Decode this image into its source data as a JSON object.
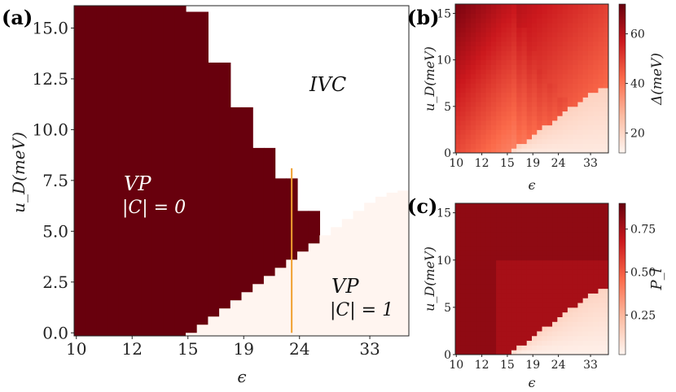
{
  "colors": {
    "dark": "#68000d",
    "light": "#fff5f0",
    "line": "#f0a030",
    "frame": "#222222"
  },
  "chart_data": [
    {
      "id": "a",
      "label": "(a)",
      "type": "heatmap",
      "xlabel": "ϵ",
      "ylabel": "u_D(meV)",
      "x_ticks": [
        "10",
        "12",
        "15",
        "19",
        "24",
        "33"
      ],
      "ylim": [
        -0.15,
        16.1
      ],
      "y_ticks": [
        "0.0",
        "2.5",
        "5.0",
        "7.5",
        "10.0",
        "12.5",
        "15.0"
      ],
      "y_tick_values": [
        0,
        2.5,
        5,
        7.5,
        10,
        12.5,
        15
      ],
      "n_columns": 30,
      "vp0_upper": [
        16.1,
        16.1,
        16.1,
        16.1,
        16.1,
        16.1,
        16.1,
        16.1,
        16.1,
        16.1,
        15.8,
        15.8,
        13.3,
        13.3,
        11.1,
        11.1,
        9.1,
        9.1,
        7.6,
        7.6,
        6.0,
        6.0,
        4.7,
        4.7,
        3.9,
        3.9,
        3.4,
        3.1,
        3.1,
        3.1
      ],
      "vp0_lower": [
        -0.15,
        -0.15,
        -0.15,
        -0.15,
        -0.15,
        -0.15,
        -0.15,
        -0.15,
        -0.15,
        -0.15,
        -0.15,
        -0.15,
        -0.15,
        -0.15,
        -0.15,
        -0.15,
        -0.15,
        -0.15,
        -0.15,
        -0.15,
        -0.15,
        0.0,
        0.4,
        0.8,
        1.2,
        1.6,
        2.0,
        2.4,
        2.8,
        2.8
      ],
      "vp1_upper": [
        0.0,
        0.4,
        0.8,
        1.2,
        1.6,
        2.0,
        2.4,
        2.8,
        3.2,
        3.6,
        4.0,
        4.4,
        4.8,
        5.2,
        5.6,
        6.0,
        6.4,
        6.7,
        6.9,
        7.0
      ],
      "phase_labels": [
        {
          "name": "IVC",
          "text": "IVC"
        },
        {
          "name": "VP",
          "text": "VP",
          "subtext": "|C| = 0"
        },
        {
          "name": "VP",
          "text": "VP",
          "subtext": "|C| = 1"
        }
      ],
      "vertical_line": {
        "x_index": 19.5,
        "y_range": [
          0,
          8.1
        ]
      }
    },
    {
      "id": "b",
      "label": "(b)",
      "type": "heatmap",
      "xlabel": "ϵ",
      "ylabel": "u_D(meV)",
      "x_ticks": [
        "10",
        "12",
        "15",
        "19",
        "24",
        "33"
      ],
      "y_ticks": [
        "0",
        "5",
        "10",
        "15"
      ],
      "y_tick_values": [
        0,
        5,
        10,
        15
      ],
      "ylim": [
        0,
        16
      ],
      "colorbar": {
        "label": "Δ(meV)",
        "ticks": [
          "20",
          "40",
          "60"
        ],
        "tick_values": [
          20,
          40,
          60
        ],
        "range": [
          12,
          72
        ]
      }
    },
    {
      "id": "c",
      "label": "(c)",
      "type": "heatmap",
      "xlabel": "ϵ",
      "ylabel": "u_D(meV)",
      "x_ticks": [
        "10",
        "12",
        "15",
        "19",
        "24",
        "33"
      ],
      "y_ticks": [
        "0",
        "5",
        "10",
        "15"
      ],
      "y_tick_values": [
        0,
        5,
        10,
        15
      ],
      "ylim": [
        0,
        16
      ],
      "colorbar": {
        "label": "P_l",
        "ticks": [
          "0.25",
          "0.50",
          "0.75"
        ],
        "tick_values": [
          0.25,
          0.5,
          0.75
        ],
        "range": [
          0.02,
          0.9
        ]
      }
    }
  ]
}
